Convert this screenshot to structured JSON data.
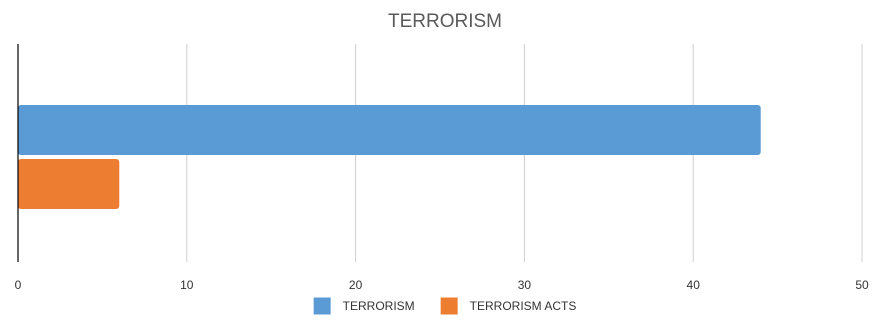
{
  "chart_data": {
    "type": "bar",
    "orientation": "horizontal",
    "title": "TERRORISM",
    "xlabel": "",
    "ylabel": "",
    "xlim": [
      0,
      50
    ],
    "x_ticks": [
      0,
      10,
      20,
      30,
      40,
      50
    ],
    "grid": true,
    "legend_position": "bottom",
    "series": [
      {
        "name": "TERRORISM",
        "value": 44,
        "color": "#5b9bd5"
      },
      {
        "name": "TERRORISM ACTS",
        "value": 6,
        "color": "#ed7d31"
      }
    ]
  }
}
